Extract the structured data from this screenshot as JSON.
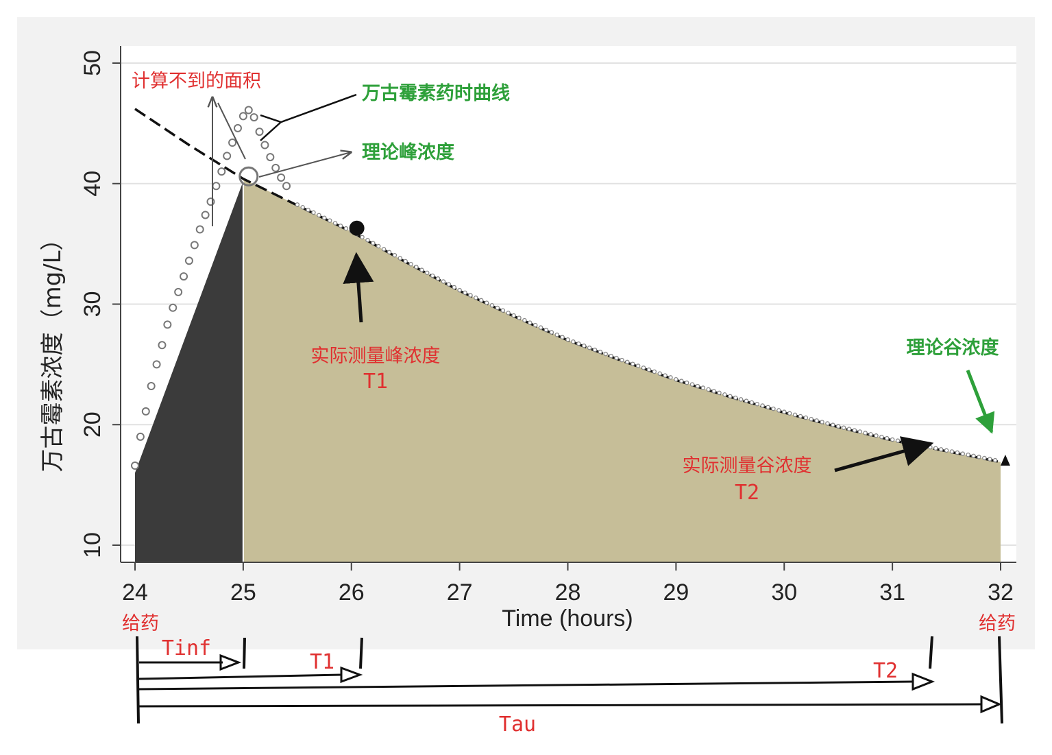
{
  "chart_data": {
    "type": "line",
    "xlabel": "Time (hours)",
    "ylabel": "万古霉素浓度（mg/L）",
    "xlim": [
      24,
      32
    ],
    "ylim": [
      9,
      51
    ],
    "x_ticks": [
      "24",
      "25",
      "26",
      "27",
      "28",
      "29",
      "30",
      "31",
      "32"
    ],
    "y_ticks": [
      "10",
      "20",
      "30",
      "40",
      "50"
    ],
    "grid": true,
    "series": [
      {
        "name": "万古霉素药时曲线",
        "style": "circles",
        "x": [
          24.0,
          24.05,
          24.1,
          24.15,
          24.2,
          24.25,
          24.3,
          24.35,
          24.4,
          24.45,
          24.5,
          24.55,
          24.6,
          24.65,
          24.7,
          24.75,
          24.8,
          24.85,
          24.9,
          24.95,
          25.0,
          25.05,
          25.1,
          25.15,
          25.2,
          25.25,
          25.3,
          25.35,
          25.4,
          25.5,
          25.6,
          25.7,
          25.8,
          26.0,
          26.5,
          27.0,
          27.5,
          28.0,
          28.5,
          29.0,
          29.5,
          30.0,
          30.5,
          31.0,
          31.5,
          32.0
        ],
        "y": [
          16.6,
          19.0,
          21.1,
          23.2,
          25.0,
          26.6,
          28.3,
          29.7,
          31.0,
          32.3,
          33.6,
          34.9,
          36.2,
          37.4,
          38.5,
          39.8,
          41.0,
          42.3,
          43.4,
          44.6,
          45.6,
          46.1,
          45.5,
          44.3,
          43.2,
          42.2,
          41.3,
          40.5,
          39.8,
          38.9,
          38.2,
          37.6,
          37.0,
          36.0,
          33.4,
          31.0,
          28.8,
          26.8,
          24.9,
          23.1,
          21.5,
          20.0,
          18.6,
          17.2,
          16.0,
          16.8
        ]
      },
      {
        "name": "",
        "style": "dashed",
        "x": [
          24,
          24.5,
          25,
          25.5,
          26,
          26.5,
          27,
          27.5,
          28,
          28.5,
          29,
          29.5,
          30,
          30.5,
          31,
          31.5,
          32
        ],
        "y": [
          46.2,
          43.2,
          40.4,
          38.2,
          36.0,
          33.5,
          31.1,
          29.0,
          27.0,
          25.3,
          23.7,
          22.3,
          21.0,
          19.8,
          18.7,
          17.8,
          16.9
        ]
      }
    ],
    "area_infusion": {
      "x": [
        24.0,
        25.0
      ],
      "y": [
        16.0,
        40.2
      ],
      "color": "#3b3b3b"
    },
    "area_elimination": {
      "x_start": 25.0,
      "x_end": 32.0,
      "color": "#c6be98"
    },
    "points": {
      "theoretical_peak": {
        "x": 25.05,
        "y": 40.6
      },
      "measured_peak": {
        "x": 26.05,
        "y": 36.3
      },
      "theoretical_trough": {
        "x": 32.05,
        "y": 17.0
      }
    },
    "annotations": {
      "unreachable_area": "计算不到的面积",
      "curve_name": "万古霉素药时曲线",
      "theoretical_peak": "理论峰浓度",
      "measured_peak": "实际测量峰浓度",
      "t1": "T1",
      "theoretical_trough": "理论谷浓度",
      "measured_trough": "实际测量谷浓度",
      "t2": "T2",
      "dose_start": "给药",
      "dose_end": "给药"
    },
    "timeline": {
      "tinf": "Tinf",
      "t1": "T1",
      "t2": "T2",
      "tau": "Tau"
    },
    "colors": {
      "panel_bg": "#f2f2f2",
      "plot_bg": "#ffffff",
      "grid": "#e2e2e2",
      "red_text": "#e03030",
      "green_text": "#2ea03a"
    }
  }
}
